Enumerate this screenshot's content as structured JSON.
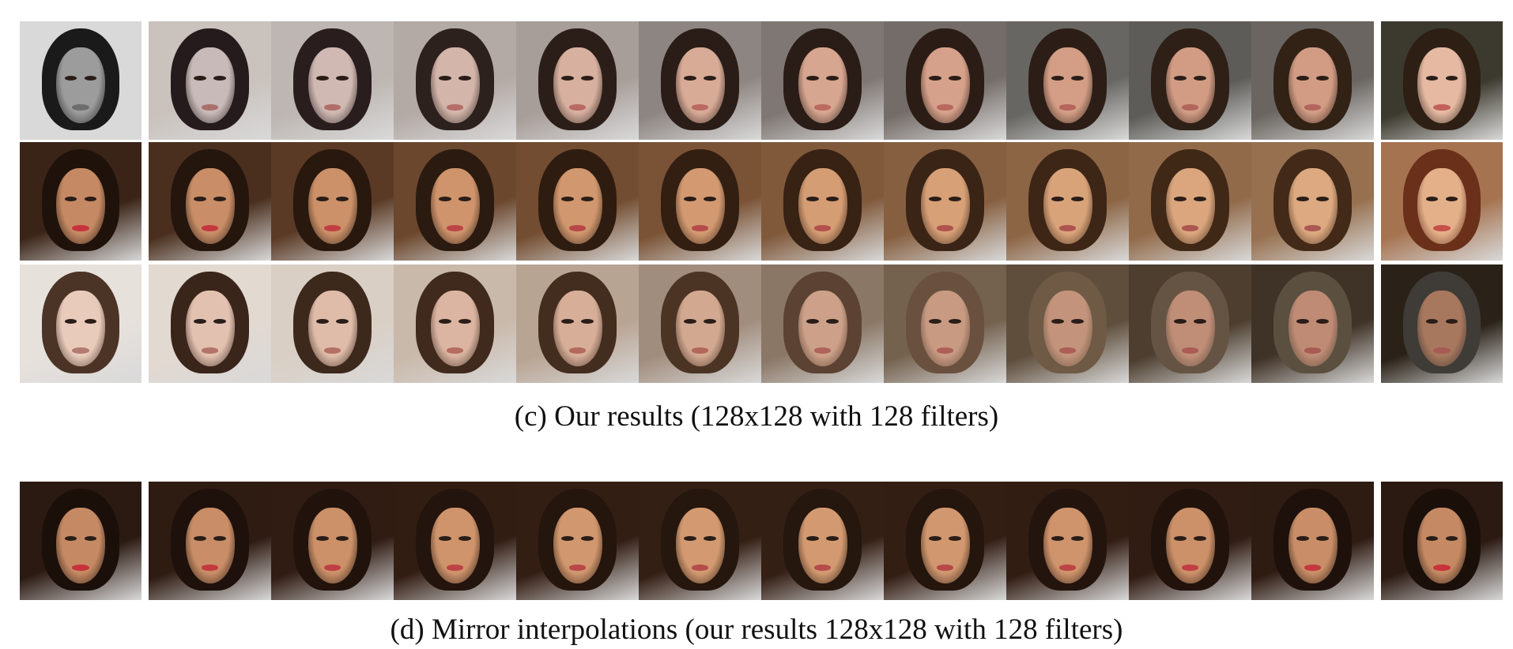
{
  "captions": {
    "c": "(c) Our results (128x128 with 128 filters)",
    "d": "(d) Mirror interpolations (our results 128x128 with 128 filters)"
  },
  "rows": [
    {
      "bg": [
        "#d9d9d9",
        "#c9c2bd",
        "#bdb6b2",
        "#b3a9a5",
        "#a79d99",
        "#8d8581",
        "#7f7773",
        "#746c68",
        "#676662",
        "#5d5c58",
        "#6a6560",
        "#3c3a2e"
      ],
      "hair": [
        "#1a1a1a",
        "#251a1c",
        "#2a1d1e",
        "#2d211e",
        "#2b1d18",
        "#2a1c17",
        "#2a1c16",
        "#2b1d16",
        "#2c1e16",
        "#2e2016",
        "#322216",
        "#2d1f14"
      ],
      "skin": [
        "#9c9c9c",
        "#c8bab8",
        "#d0b9b2",
        "#d3b5aa",
        "#d7b09f",
        "#d8ab97",
        "#d7a690",
        "#d6a18a",
        "#d49e86",
        "#d29c84",
        "#d29c84",
        "#e5b9a2"
      ],
      "lips": [
        "#6d6d6d",
        "#a9706e",
        "#b06f6c",
        "#b46d69",
        "#b86a63",
        "#bb6a62",
        "#bb6a62",
        "#b8685f",
        "#b5655c",
        "#b3655c",
        "#b3655c",
        "#c2605c"
      ]
    },
    {
      "bg": [
        "#3a2417",
        "#4a2f1e",
        "#5a3a25",
        "#6b472d",
        "#734d31",
        "#7a5336",
        "#80593b",
        "#865f40",
        "#8c6545",
        "#916a4a",
        "#96704f",
        "#a57350"
      ],
      "hair": [
        "#1f120b",
        "#24150d",
        "#28180e",
        "#2b1a0f",
        "#2f1c10",
        "#331f12",
        "#372214",
        "#3a2415",
        "#3d2616",
        "#402817",
        "#432a18",
        "#6a3019"
      ],
      "skin": [
        "#c58a64",
        "#c98e67",
        "#cc9169",
        "#cf946c",
        "#d1976e",
        "#d39a71",
        "#d59d74",
        "#d7a077",
        "#d9a37a",
        "#dba67d",
        "#dda980",
        "#e3b08a"
      ],
      "lips": [
        "#c8323a",
        "#c4393e",
        "#c03f42",
        "#bc4445",
        "#b84848",
        "#b54c4a",
        "#b34f4c",
        "#b0524e",
        "#ae5450",
        "#ac5652",
        "#aa5853",
        "#c6504a"
      ]
    },
    {
      "bg": [
        "#e7e1dc",
        "#e2d9d1",
        "#d9cfc5",
        "#c9b9aa",
        "#b8a493",
        "#a18d7d",
        "#8a7766",
        "#74624f",
        "#5f4e3c",
        "#4d3e2f",
        "#3f3226",
        "#2a2218"
      ],
      "hair": [
        "#4b3426",
        "#3a251a",
        "#3d281c",
        "#3f2a1d",
        "#432d1f",
        "#4c3424",
        "#5b4232",
        "#6a513f",
        "#6e5a45",
        "#655443",
        "#5b4f40",
        "#3f3b36"
      ],
      "skin": [
        "#e9cbbb",
        "#e2c1b0",
        "#dfbca9",
        "#dbb5a1",
        "#d7ae98",
        "#d2a890",
        "#cda189",
        "#c89a82",
        "#c3937b",
        "#c08e77",
        "#bf8b74",
        "#a8785e"
      ],
      "lips": [
        "#b27c70",
        "#b27468",
        "#b47065",
        "#b56c61",
        "#b4695e",
        "#b2665c",
        "#b0635a",
        "#ae6058",
        "#ac5e56",
        "#aa5c55",
        "#a85a54",
        "#a85a54"
      ]
    },
    {
      "bg": [
        "#2b1a12",
        "#2e1b12",
        "#301c13",
        "#321d13",
        "#331e14",
        "#341f14",
        "#341f14",
        "#331e14",
        "#321d13",
        "#301c13",
        "#2e1b12",
        "#2b1a12"
      ],
      "hair": [
        "#1b0f0a",
        "#1e110b",
        "#21130c",
        "#23140d",
        "#24150d",
        "#25160e",
        "#25160e",
        "#24150d",
        "#23140d",
        "#21130c",
        "#1e110b",
        "#1b0f0a"
      ],
      "skin": [
        "#c58a64",
        "#c98e67",
        "#cc9169",
        "#cf946c",
        "#d1976e",
        "#d39a71",
        "#d39a71",
        "#d1976e",
        "#cf946c",
        "#cc9169",
        "#c98e67",
        "#c58a64"
      ],
      "lips": [
        "#c8323a",
        "#c4393e",
        "#c03f42",
        "#bc4445",
        "#b84848",
        "#b54c4a",
        "#b54c4a",
        "#b84848",
        "#bc4445",
        "#c03f42",
        "#c4393e",
        "#c8323a"
      ]
    }
  ]
}
